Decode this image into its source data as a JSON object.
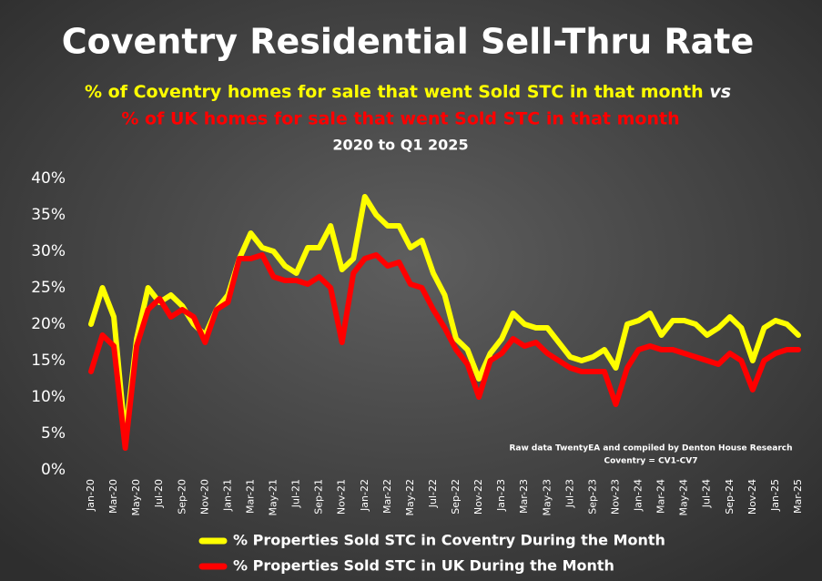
{
  "chart_data": {
    "type": "line",
    "title": "Coventry Residential Sell-Thru Rate",
    "subtitle": [
      "% of Coventry homes for sale that went Sold STC in that month",
      "vs",
      "% of UK homes for sale that went Sold STC in that month"
    ],
    "period_label": "2020 to Q1 2025",
    "annotations": [
      "Raw data TwentyEA and compiled by Denton House Research",
      "Coventry = CV1-CV7"
    ],
    "categories": [
      "Jan-20",
      null,
      "Mar-20",
      null,
      "May-20",
      null,
      "Jul-20",
      null,
      "Sep-20",
      null,
      "Nov-20",
      null,
      "Jan-21",
      null,
      "Mar-21",
      null,
      "May-21",
      null,
      "Jul-21",
      null,
      "Sep-21",
      null,
      "Nov-21",
      null,
      "Jan-22",
      null,
      "Mar-22",
      null,
      "May-22",
      null,
      "Jul-22",
      null,
      "Sep-22",
      null,
      "Nov-22",
      null,
      "Jan-23",
      null,
      "Mar-23",
      null,
      "May-23",
      null,
      "Jul-23",
      null,
      "Sep-23",
      null,
      "Nov-23",
      null,
      "Jan-24",
      null,
      "Mar-24",
      null,
      "May-24",
      null,
      "Jul-24",
      null,
      "Sep-24",
      null,
      "Nov-24",
      null,
      "Jan-25",
      null,
      "Mar-25"
    ],
    "series": [
      {
        "name": "% Properties Sold STC in Coventry During the Month",
        "color": "#ffff00",
        "values": [
          20,
          25,
          21,
          4.5,
          18,
          25,
          23,
          24,
          22.5,
          20,
          18.5,
          22,
          24,
          29,
          32.5,
          30.5,
          30,
          28,
          27,
          30.5,
          30.5,
          33.5,
          27.5,
          29,
          37.5,
          35,
          33.5,
          33.5,
          30.5,
          31.5,
          27,
          24,
          18,
          16.5,
          12.5,
          16,
          18,
          21.5,
          20,
          19.5,
          19.5,
          17.5,
          15.5,
          15,
          15.5,
          16.5,
          14,
          20,
          20.5,
          21.5,
          18.5,
          20.5,
          20.5,
          20,
          18.5,
          19.5,
          21,
          19.5,
          15,
          19.5,
          20.5,
          20,
          18.5
        ]
      },
      {
        "name": "% Properties Sold STC in UK During the Month",
        "color": "#ff0000",
        "values": [
          13.5,
          18.5,
          17,
          3,
          17,
          22,
          23.5,
          21,
          22,
          21,
          17.5,
          22,
          23,
          29,
          29,
          29.5,
          26.5,
          26,
          26,
          25.5,
          26.5,
          25,
          17.5,
          27,
          29,
          29.5,
          28,
          28.5,
          25.5,
          25,
          22,
          19.5,
          16.5,
          14.5,
          10,
          15,
          16,
          18,
          17,
          17.5,
          16,
          15,
          14,
          13.5,
          13.5,
          13.5,
          9,
          14,
          16.5,
          17,
          16.5,
          16.5,
          16,
          15.5,
          15,
          14.5,
          16,
          15,
          11,
          15,
          16,
          16.5,
          16.5
        ]
      }
    ],
    "ylim": [
      0,
      40
    ],
    "yticks": [
      {
        "value": 0,
        "label": "0%"
      },
      {
        "value": 5,
        "label": "5%"
      },
      {
        "value": 10,
        "label": "10%"
      },
      {
        "value": 15,
        "label": "15%"
      },
      {
        "value": 20,
        "label": "20%"
      },
      {
        "value": 25,
        "label": "25%"
      },
      {
        "value": 30,
        "label": "30%"
      },
      {
        "value": 35,
        "label": "35%"
      },
      {
        "value": 40,
        "label": "40%"
      }
    ],
    "grid": false,
    "legend": "bottom"
  }
}
